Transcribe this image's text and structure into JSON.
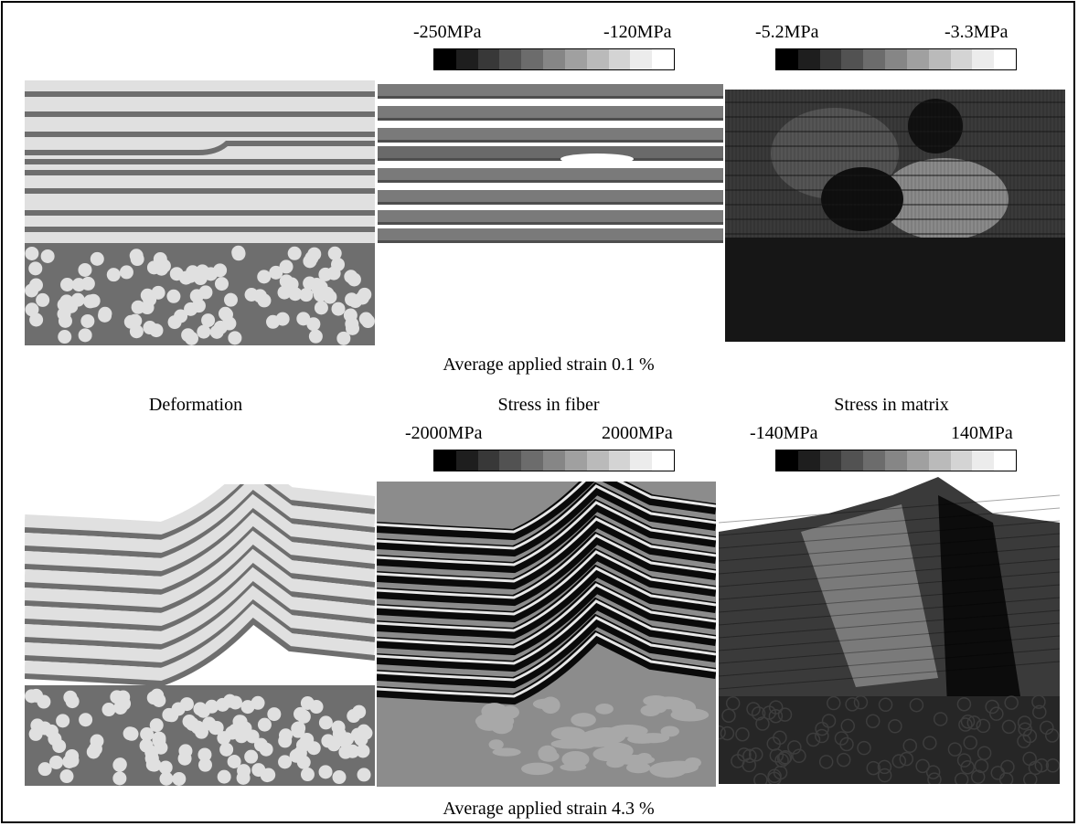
{
  "captions": {
    "strain_top": "Average applied strain 0.1 %",
    "strain_bottom": "Average applied strain 4.3 %"
  },
  "column_titles": {
    "deformation": "Deformation",
    "fiber": "Stress in fiber",
    "matrix": "Stress in matrix"
  },
  "colorbars": {
    "top_fiber": {
      "min": "-250MPa",
      "max": "-120MPa"
    },
    "top_matrix": {
      "min": "-5.2MPa",
      "max": "-3.3MPa"
    },
    "bottom_fiber": {
      "min": "-2000MPa",
      "max": "2000MPa"
    },
    "bottom_matrix": {
      "min": "-140MPa",
      "max": "140MPa"
    }
  },
  "colors": {
    "fiber_light": "#e0e0e0",
    "matrix_gray": "#6e6e6e",
    "dark_matrix": "#262626"
  }
}
